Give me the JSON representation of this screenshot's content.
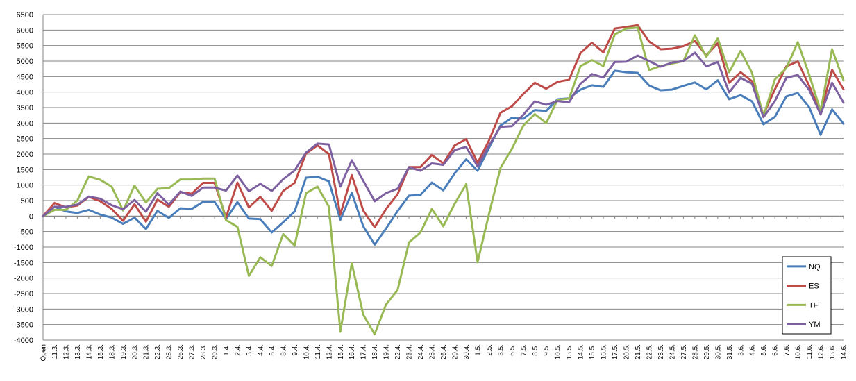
{
  "chart_data": {
    "type": "line",
    "title": "",
    "xlabel": "",
    "ylabel": "",
    "ylim": [
      -4000,
      6500
    ],
    "ytick_step": 500,
    "grid": true,
    "legend_position": "right",
    "categories": [
      "Open",
      "11.3.",
      "12.3.",
      "13.3.",
      "14.3.",
      "15.3.",
      "18.3.",
      "19.3.",
      "20.3.",
      "21.3.",
      "22.3.",
      "25.3.",
      "26.3.",
      "27.3.",
      "28.3.",
      "29.3.",
      "1.4.",
      "2.4.",
      "3.4.",
      "4.4.",
      "5.4.",
      "8.4.",
      "9.4.",
      "10.4.",
      "11.4.",
      "12.4.",
      "15.4.",
      "16.4.",
      "17.4.",
      "18.4.",
      "19.4.",
      "22.4.",
      "23.4.",
      "24.4.",
      "25.4.",
      "26.4.",
      "29.4.",
      "30.4.",
      "1.5.",
      "2.5.",
      "3.5.",
      "6.5.",
      "7.5.",
      "8.5.",
      "9.5.",
      "10.5.",
      "13.5.",
      "14.5.",
      "15.5.",
      "16.5.",
      "17.5.",
      "20.5.",
      "21.5.",
      "22.5.",
      "23.5.",
      "24.5.",
      "27.5.",
      "28.5.",
      "29.5.",
      "30.5.",
      "31.5.",
      "3.6.",
      "4.6.",
      "5.6.",
      "6.6.",
      "7.6.",
      "10.6.",
      "11.6.",
      "12.6.",
      "13.6.",
      "14.6."
    ],
    "series": [
      {
        "name": "NQ",
        "color": "#4a7ebb",
        "values": [
          0,
          300,
          150,
          100,
          200,
          50,
          -50,
          -250,
          -50,
          -420,
          170,
          -60,
          250,
          230,
          460,
          460,
          -100,
          450,
          -80,
          -100,
          -530,
          -200,
          150,
          1240,
          1270,
          1120,
          -120,
          750,
          -330,
          -920,
          -400,
          160,
          660,
          680,
          1080,
          830,
          1380,
          1830,
          1460,
          2200,
          2920,
          3170,
          3140,
          3420,
          3390,
          3770,
          3800,
          4080,
          4220,
          4170,
          4690,
          4640,
          4620,
          4210,
          4060,
          4080,
          4200,
          4310,
          4090,
          4380,
          3770,
          3900,
          3700,
          2960,
          3200,
          3860,
          3970,
          3510,
          2620,
          3440,
          2980
        ]
      },
      {
        "name": "ES",
        "color": "#be4b48",
        "values": [
          0,
          420,
          280,
          340,
          620,
          480,
          230,
          -150,
          380,
          -180,
          530,
          300,
          770,
          720,
          1070,
          1070,
          -50,
          1080,
          280,
          620,
          170,
          810,
          1070,
          2020,
          2280,
          2000,
          50,
          1320,
          180,
          -360,
          230,
          700,
          1580,
          1580,
          1970,
          1700,
          2280,
          2480,
          1720,
          2440,
          3330,
          3540,
          3940,
          4300,
          4110,
          4330,
          4400,
          5260,
          5590,
          5280,
          6050,
          6100,
          6160,
          5630,
          5380,
          5400,
          5480,
          5650,
          5180,
          5580,
          4300,
          4640,
          4350,
          3270,
          4090,
          4830,
          4990,
          4200,
          3330,
          4720,
          4090
        ]
      },
      {
        "name": "TF",
        "color": "#98b954",
        "values": [
          0,
          200,
          200,
          500,
          1280,
          1170,
          950,
          180,
          980,
          440,
          880,
          900,
          1180,
          1180,
          1210,
          1210,
          -130,
          -350,
          -1930,
          -1330,
          -1610,
          -580,
          -950,
          740,
          950,
          300,
          -3730,
          -1520,
          -3180,
          -3810,
          -2850,
          -2390,
          -850,
          -530,
          230,
          -330,
          400,
          1030,
          -1490,
          70,
          1550,
          2170,
          2920,
          3290,
          3000,
          3750,
          3790,
          4840,
          5030,
          4840,
          5860,
          6050,
          6080,
          4710,
          4840,
          4920,
          5000,
          5830,
          5140,
          5730,
          4640,
          5330,
          4620,
          3220,
          4410,
          4770,
          5610,
          4560,
          3390,
          5380,
          4380
        ]
      },
      {
        "name": "YM",
        "color": "#7d60a0",
        "values": [
          0,
          300,
          300,
          370,
          630,
          560,
          350,
          220,
          520,
          140,
          740,
          370,
          790,
          650,
          920,
          920,
          820,
          1310,
          800,
          1040,
          810,
          1190,
          1470,
          2050,
          2340,
          2310,
          950,
          1800,
          1140,
          480,
          740,
          880,
          1580,
          1460,
          1700,
          1650,
          2130,
          2230,
          1600,
          2280,
          2880,
          2900,
          3270,
          3700,
          3590,
          3710,
          3670,
          4270,
          4580,
          4470,
          4970,
          4980,
          5180,
          5000,
          4820,
          4950,
          5000,
          5270,
          4830,
          4970,
          3990,
          4460,
          4270,
          3190,
          3710,
          4460,
          4550,
          4070,
          3280,
          4300,
          3660
        ]
      }
    ]
  }
}
